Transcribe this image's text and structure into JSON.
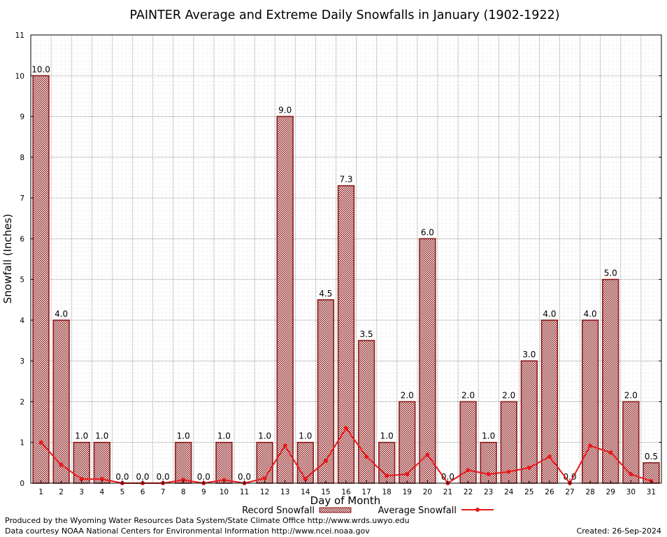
{
  "chart_data": {
    "type": "bar",
    "title": "PAINTER Average and Extreme Daily Snowfalls in January (1902-1922)",
    "xlabel": "Day of Month",
    "ylabel": "Snowfall (Inches)",
    "ylim": [
      0,
      11
    ],
    "yticks": [
      "0",
      "1",
      "2",
      "3",
      "4",
      "5",
      "6",
      "7",
      "8",
      "9",
      "10",
      "11"
    ],
    "grid": true,
    "legend_position": "bottom",
    "categories": [
      "1",
      "2",
      "3",
      "4",
      "5",
      "6",
      "7",
      "8",
      "9",
      "10",
      "11",
      "12",
      "13",
      "14",
      "15",
      "16",
      "17",
      "18",
      "19",
      "20",
      "21",
      "22",
      "23",
      "24",
      "25",
      "26",
      "27",
      "28",
      "29",
      "30",
      "31"
    ],
    "series": [
      {
        "name": "Record Snowfall",
        "type": "bar",
        "color": "#8b1a1a",
        "values": [
          10.0,
          4.0,
          1.0,
          1.0,
          0.0,
          0.0,
          0.0,
          1.0,
          0.0,
          1.0,
          0.0,
          1.0,
          9.0,
          1.0,
          4.5,
          7.3,
          3.5,
          1.0,
          2.0,
          6.0,
          0.0,
          2.0,
          1.0,
          2.0,
          3.0,
          4.0,
          0.0,
          4.0,
          5.0,
          2.0,
          0.5
        ],
        "labels": [
          "10.0",
          "4.0",
          "1.0",
          "1.0",
          "0.0",
          "0.0",
          "0.0",
          "1.0",
          "0.0",
          "1.0",
          "0.0",
          "1.0",
          "9.0",
          "1.0",
          "4.5",
          "7.3",
          "3.5",
          "1.0",
          "2.0",
          "6.0",
          "0.0",
          "2.0",
          "1.0",
          "2.0",
          "3.0",
          "4.0",
          "0.0",
          "4.0",
          "5.0",
          "2.0",
          "0.5"
        ]
      },
      {
        "name": "Average Snowfall",
        "type": "line",
        "color": "#e8191d",
        "values": [
          1.0,
          0.45,
          0.1,
          0.1,
          0.0,
          0.0,
          0.0,
          0.08,
          0.0,
          0.08,
          0.0,
          0.12,
          0.92,
          0.1,
          0.55,
          1.35,
          0.65,
          0.18,
          0.22,
          0.7,
          0.0,
          0.32,
          0.22,
          0.28,
          0.38,
          0.65,
          0.0,
          0.92,
          0.75,
          0.22,
          0.05
        ]
      }
    ]
  },
  "footer": {
    "credit_line1": "Produced by the Wyoming Water Resources Data System/State Climate Office http://www.wrds.uwyo.edu",
    "credit_line2": "Data courtesy NOAA National Centers for Environmental Information http://www.ncei.noaa.gov",
    "created": "Created: 26-Sep-2024"
  }
}
